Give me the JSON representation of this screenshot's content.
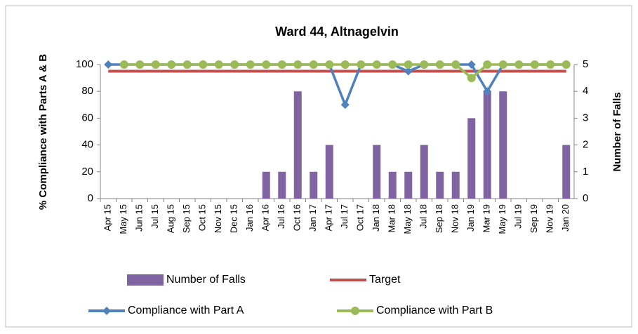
{
  "chart_data": {
    "type": "combo",
    "title": "Ward 44, Altnagelvin",
    "y_label": "% Compliance with Parts A & B",
    "y2_label": "Number of Falls",
    "categories": [
      "Apr 15",
      "May 15",
      "Jun 15",
      "Jul 15",
      "Aug 15",
      "Sep 15",
      "Oct 15",
      "Nov 15",
      "Dec 15",
      "Jan 16",
      "Apr 16",
      "Jul 16",
      "Oct 16",
      "Jan 17",
      "Apr 17",
      "Jul 17",
      "Oct 17",
      "Jan 18",
      "Mar 18",
      "May 18",
      "Jul 18",
      "Sep 18",
      "Nov 18",
      "Jan 19",
      "Mar 19",
      "May 19",
      "Jul 19",
      "Sep 19",
      "Nov 19",
      "Jan 20"
    ],
    "ylim": [
      0,
      100
    ],
    "yticks": [
      0,
      20,
      40,
      60,
      80,
      100
    ],
    "y2lim": [
      0,
      5
    ],
    "y2ticks": [
      0,
      1,
      2,
      3,
      4,
      5
    ],
    "series": [
      {
        "name": "Number of Falls",
        "type": "bar",
        "axis": "y2",
        "color": "#8064a2",
        "values": [
          0,
          0,
          0,
          0,
          0,
          0,
          0,
          0,
          0,
          0,
          1,
          1,
          4,
          1,
          2,
          0,
          0,
          2,
          1,
          1,
          2,
          1,
          1,
          3,
          4,
          4,
          0,
          0,
          0,
          2
        ]
      },
      {
        "name": "Target",
        "type": "line",
        "color": "#c0504d",
        "values": [
          95,
          95,
          95,
          95,
          95,
          95,
          95,
          95,
          95,
          95,
          95,
          95,
          95,
          95,
          95,
          95,
          95,
          95,
          95,
          95,
          95,
          95,
          95,
          95,
          95,
          95,
          95,
          95,
          95,
          95
        ]
      },
      {
        "name": "Compliance with Part A",
        "type": "line",
        "marker": "diamond",
        "color": "#4f81bd",
        "values": [
          100,
          100,
          100,
          100,
          100,
          100,
          100,
          100,
          100,
          100,
          100,
          100,
          100,
          100,
          100,
          70,
          100,
          100,
          100,
          95,
          100,
          100,
          100,
          100,
          80,
          100,
          100,
          100,
          100,
          100
        ]
      },
      {
        "name": "Compliance with Part B",
        "type": "line",
        "marker": "circle",
        "color": "#9bbb59",
        "values": [
          null,
          100,
          100,
          100,
          100,
          100,
          100,
          100,
          100,
          100,
          100,
          100,
          100,
          100,
          100,
          100,
          100,
          100,
          100,
          100,
          100,
          100,
          100,
          90,
          100,
          100,
          100,
          100,
          100,
          100
        ]
      }
    ]
  }
}
